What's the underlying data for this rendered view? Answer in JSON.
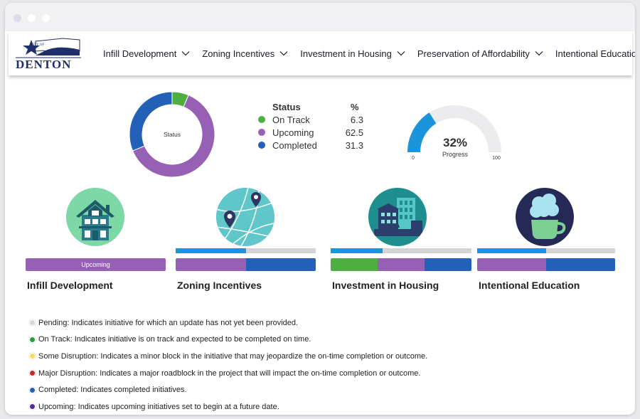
{
  "header": {
    "logo_top_text": "CITY OF",
    "logo_text": "DENTON",
    "nav": [
      {
        "label": "Infill Development"
      },
      {
        "label": "Zoning Incentives"
      },
      {
        "label": "Investment in Housing"
      },
      {
        "label": "Preservation of Affordability"
      },
      {
        "label": "Intentional Education"
      }
    ]
  },
  "status_chart": {
    "center_label": "Status",
    "column_status": "Status",
    "column_percent": "%",
    "rows": [
      {
        "name": "On Track",
        "value": "6.3",
        "color": "#4caf3f"
      },
      {
        "name": "Upcoming",
        "value": "62.5",
        "color": "#9660b5"
      },
      {
        "name": "Completed",
        "value": "31.3",
        "color": "#2361b8"
      }
    ]
  },
  "chart_data": [
    {
      "type": "pie",
      "title": "",
      "center_label": "Status",
      "categories": [
        "On Track",
        "Upcoming",
        "Completed"
      ],
      "values": [
        6.3,
        62.5,
        31.3
      ],
      "colors": [
        "#4caf3f",
        "#9660b5",
        "#2361b8"
      ]
    },
    {
      "type": "gauge",
      "value": 32,
      "min": 0,
      "max": 100,
      "label": "Progress",
      "colors": [
        "#1a94db",
        "#ebebed"
      ]
    }
  ],
  "progress": {
    "value_text": "32%",
    "label": "Progress",
    "min_label": "0",
    "max_label": "100"
  },
  "initiatives": [
    {
      "title": "Infill Development",
      "icon": "house-icon",
      "progress": 0,
      "segments": [
        {
          "label": "Upcoming",
          "fraction": 1.0,
          "color": "#9660b5"
        }
      ]
    },
    {
      "title": "Zoning Incentives",
      "icon": "map-pin-globe-icon",
      "progress": 0.5,
      "segments": [
        {
          "label": "",
          "fraction": 0.5,
          "color": "#9660b5"
        },
        {
          "label": "",
          "fraction": 0.5,
          "color": "#2361b8"
        }
      ]
    },
    {
      "title": "Investment in Housing",
      "icon": "buildings-icon",
      "progress": 0.37,
      "segments": [
        {
          "label": "",
          "fraction": 0.333,
          "color": "#4caf3f"
        },
        {
          "label": "",
          "fraction": 0.333,
          "color": "#9660b5"
        },
        {
          "label": "",
          "fraction": 0.334,
          "color": "#2361b8"
        }
      ]
    },
    {
      "title": "Intentional Education",
      "icon": "coffee-cup-icon",
      "progress": 0.5,
      "segments": [
        {
          "label": "",
          "fraction": 0.5,
          "color": "#9660b5"
        },
        {
          "label": "",
          "fraction": 0.5,
          "color": "#2361b8"
        }
      ]
    }
  ],
  "definitions": [
    {
      "text": "Pending: Indicates initiative for which an update has not yet been provided.",
      "color": "#d8d8d8"
    },
    {
      "text": "On Track: Indicates initiative is on track and expected to be completed on time.",
      "color": "#2e9e44"
    },
    {
      "text": "Some Disruption: Indicates a minor block in the initiative that may jeopardize the on-time completion or outcome.",
      "color": "#f3df5a"
    },
    {
      "text": "Major Disruption: Indicates a major roadblock in the project that will impact the on-time completion or outcome.",
      "color": "#c8282f"
    },
    {
      "text": "Completed: Indicates completed initiatives.",
      "color": "#2361b8"
    },
    {
      "text": "Upcoming: Indicates upcoming initiatives set to begin at a future date.",
      "color": "#5b2d91"
    }
  ]
}
